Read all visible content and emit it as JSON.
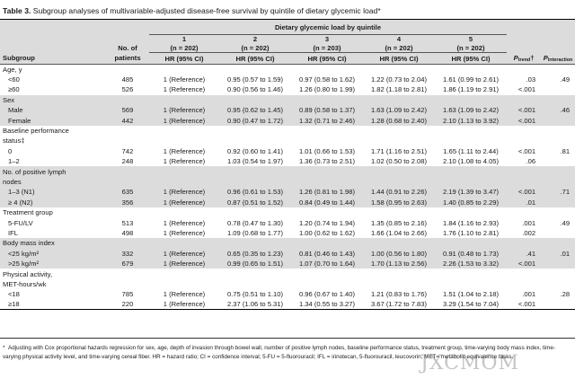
{
  "caption": {
    "label": "Table 3.",
    "text": " Subgroup analyses of multivariable-adjusted disease-free survival by quintile of dietary glycemic load*"
  },
  "header": {
    "span_title": "Dietary glycemic load by quintile",
    "subgroup": "Subgroup",
    "patients": [
      "No. of",
      "patients"
    ],
    "quintiles": [
      {
        "num": "1",
        "n": "(n = 202)"
      },
      {
        "num": "2",
        "n": "(n = 202)"
      },
      {
        "num": "3",
        "n": "(n = 203)"
      },
      {
        "num": "4",
        "n": "(n = 202)"
      },
      {
        "num": "5",
        "n": "(n = 202)"
      }
    ],
    "hr": "HR (95% CI)",
    "p_trend": "P",
    "p_trend_sub": "trend",
    "p_trend_mark": "†",
    "p_inter": "P",
    "p_inter_sub": "interaction"
  },
  "rows": [
    {
      "kind": "group",
      "label": "Age, y"
    },
    {
      "kind": "data",
      "label": "<60",
      "n": "485",
      "q": [
        "1 (Reference)",
        "0.95 (0.57 to 1.59)",
        "0.97 (0.58 to 1.62)",
        "1.22 (0.73 to 2.04)",
        "1.61 (0.99 to 2.61)"
      ],
      "pt": ".03",
      "pi": ".49"
    },
    {
      "kind": "data",
      "label": "≥60",
      "n": "526",
      "q": [
        "1 (Reference)",
        "0.90 (0.56 to 1.46)",
        "1.26 (0.80 to 1.99)",
        "1.82 (1.18 to 2.81)",
        "1.86 (1.19 to 2.91)"
      ],
      "pt": "<.001",
      "pi": ""
    },
    {
      "kind": "group",
      "label": "Sex"
    },
    {
      "kind": "data",
      "label": "Male",
      "n": "569",
      "q": [
        "1 (Reference)",
        "0.95 (0.62 to 1.45)",
        "0.89 (0.58 to 1.37)",
        "1.63 (1.09 to 2.42)",
        "1.63 (1.09 to 2.42)"
      ],
      "pt": "<.001",
      "pi": ".46"
    },
    {
      "kind": "data",
      "label": "Female",
      "n": "442",
      "q": [
        "1 (Reference)",
        "0.90 (0.47 to 1.72)",
        "1.32 (0.71 to 2.46)",
        "1.28 (0.68 to 2.40)",
        "2.10 (1.13 to 3.92)"
      ],
      "pt": "<.001",
      "pi": ""
    },
    {
      "kind": "group",
      "label": "Baseline performance"
    },
    {
      "kind": "group2",
      "label": "status‡"
    },
    {
      "kind": "data",
      "label": "0",
      "n": "742",
      "q": [
        "1 (Reference)",
        "0.92 (0.60 to 1.41)",
        "1.01 (0.66 to 1.53)",
        "1.71 (1.16 to 2.51)",
        "1.65 (1.11 to 2.44)"
      ],
      "pt": "<.001",
      "pi": ".81"
    },
    {
      "kind": "data",
      "label": "1–2",
      "n": "248",
      "q": [
        "1 (Reference)",
        "1.03 (0.54 to 1.97)",
        "1.36 (0.73 to 2.51)",
        "1.02 (0.50 to 2.08)",
        "2.10 (1.08 to 4.05)"
      ],
      "pt": ".06",
      "pi": ""
    },
    {
      "kind": "group",
      "label": "No. of positive lymph"
    },
    {
      "kind": "group2",
      "label": "nodes"
    },
    {
      "kind": "data",
      "label": "1–3 (N1)",
      "n": "635",
      "q": [
        "1 (Reference)",
        "0.96 (0.61 to 1.53)",
        "1.26 (0.81 to 1.98)",
        "1.44 (0.91 to 2.26)",
        "2.19 (1.39 to 3.47)"
      ],
      "pt": "<.001",
      "pi": ".71"
    },
    {
      "kind": "data",
      "label": "≥ 4 (N2)",
      "n": "356",
      "q": [
        "1 (Reference)",
        "0.87 (0.51 to 1.52)",
        "0.84 (0.49 to 1.44)",
        "1.58 (0.95 to 2.63)",
        "1.40 (0.85 to 2.29)"
      ],
      "pt": ".01",
      "pi": ""
    },
    {
      "kind": "group",
      "label": "Treatment group"
    },
    {
      "kind": "data",
      "label": "5-FU/LV",
      "n": "513",
      "q": [
        "1 (Reference)",
        "0.78 (0.47 to 1.30)",
        "1.20 (0.74 to 1.94)",
        "1.35 (0.85 to 2.16)",
        "1.84 (1.16 to 2.93)"
      ],
      "pt": ".001",
      "pi": ".49"
    },
    {
      "kind": "data",
      "label": "IFL",
      "n": "498",
      "q": [
        "1 (Reference)",
        "1.09 (0.68 to 1.77)",
        "1.00 (0.62 to 1.62)",
        "1.66 (1.04 to 2.66)",
        "1.76 (1.10 to 2.81)"
      ],
      "pt": ".002",
      "pi": ""
    },
    {
      "kind": "group",
      "label": "Body mass index"
    },
    {
      "kind": "data",
      "label": "<25 kg/m²",
      "n": "332",
      "q": [
        "1 (Reference)",
        "0.65 (0.35 to 1.23)",
        "0.81 (0.46 to 1.43)",
        "1.00 (0.56 to 1.80)",
        "0.91 (0.48 to 1.73)"
      ],
      "pt": ".41",
      "pi": ".01"
    },
    {
      "kind": "data",
      "label": ">25 kg/m²",
      "n": "679",
      "q": [
        "1 (Reference)",
        "0.99 (0.65 to 1.51)",
        "1.07 (0.70 to 1.64)",
        "1.70 (1.13 to 2.56)",
        "2.26 (1.53 to 3.32)"
      ],
      "pt": "<.001",
      "pi": ""
    },
    {
      "kind": "group",
      "label": "Physical activity,"
    },
    {
      "kind": "group2",
      "label": "MET-hours/wk"
    },
    {
      "kind": "data",
      "label": "<18",
      "n": "785",
      "q": [
        "1 (Reference)",
        "0.75 (0.51 to 1.10)",
        "0.96 (0.67 to 1.40)",
        "1.21 (0.83 to 1.76)",
        "1.51 (1.04 to 2.18)"
      ],
      "pt": ".001",
      "pi": ".28"
    },
    {
      "kind": "data",
      "label": "≥18",
      "n": "220",
      "q": [
        "1 (Reference)",
        "2.37 (1.06 to 5.31)",
        "1.34 (0.55 to 3.27)",
        "3.67 (1.72 to 7.83)",
        "3.29 (1.54 to 7.04)"
      ],
      "pt": "<.001",
      "pi": ""
    }
  ],
  "footnote": {
    "mark": "*",
    "text": "Adjusting with Cox proportional hazards regression for sex, age, depth of invasion through bowel wall, number of positive lymph nodes, baseline performance status, treatment group, time-varying body mass index, time-varying physical activity level, and time-varying cereal fiber. HR = hazard ratio; CI = confidence interval; 5-FU = 5-fluorouracil; IFL = irinotecan, 5-fluorouracil, leucovorin; MET= metabolic equivalence tasks."
  },
  "watermark": "JXCMOM"
}
